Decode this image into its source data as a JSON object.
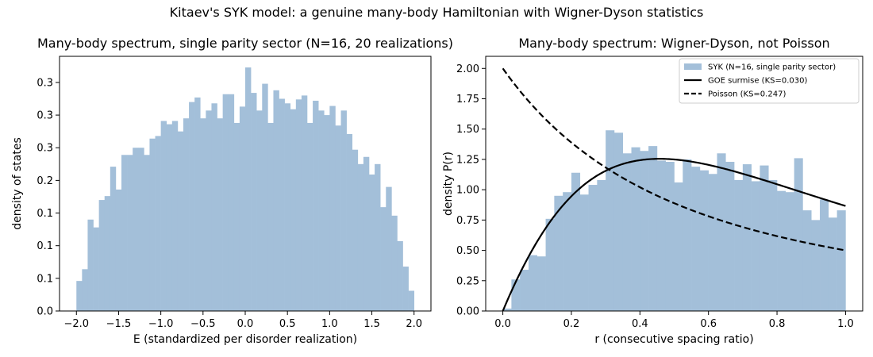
{
  "suptitle": "Kitaev's SYK model: a genuine many-body Hamiltonian with Wigner-Dyson statistics",
  "colors": {
    "bar": "#a3bfd9",
    "line": "#000000"
  },
  "chart_data": [
    {
      "type": "bar",
      "title": "Many-body spectrum, single parity sector (N=16, 20 realizations)",
      "xlabel": "E (standardized per disorder realization)",
      "ylabel": "density of states",
      "xlim": [
        -2.2,
        2.2
      ],
      "ylim": [
        0,
        0.39
      ],
      "xticks": [
        -2.0,
        -1.5,
        -1.0,
        -0.5,
        0.0,
        0.5,
        1.0,
        1.5,
        2.0
      ],
      "yticks": [
        0.0,
        0.05,
        0.1,
        0.15,
        0.2,
        0.25,
        0.3,
        0.35
      ],
      "bin_range": [
        -2.0,
        2.0
      ],
      "bins": 60,
      "values": [
        0.046,
        0.064,
        0.14,
        0.128,
        0.17,
        0.176,
        0.221,
        0.186,
        0.239,
        0.239,
        0.25,
        0.25,
        0.239,
        0.264,
        0.268,
        0.291,
        0.286,
        0.291,
        0.275,
        0.295,
        0.32,
        0.327,
        0.295,
        0.307,
        0.318,
        0.295,
        0.332,
        0.332,
        0.288,
        0.313,
        0.373,
        0.334,
        0.307,
        0.348,
        0.288,
        0.338,
        0.325,
        0.318,
        0.309,
        0.324,
        0.33,
        0.288,
        0.322,
        0.307,
        0.3,
        0.314,
        0.284,
        0.307,
        0.271,
        0.247,
        0.225,
        0.236,
        0.209,
        0.225,
        0.159,
        0.19,
        0.146,
        0.107,
        0.068,
        0.031
      ]
    },
    {
      "type": "bar",
      "title": "Many-body spectrum: Wigner-Dyson, not Poisson",
      "xlabel": "r (consecutive spacing ratio)",
      "ylabel": "density P(r)",
      "xlim": [
        -0.05,
        1.05
      ],
      "ylim": [
        0,
        2.1
      ],
      "xticks": [
        0.0,
        0.2,
        0.4,
        0.6,
        0.8,
        1.0
      ],
      "yticks": [
        0.0,
        0.25,
        0.5,
        0.75,
        1.0,
        1.25,
        1.5,
        1.75,
        2.0
      ],
      "bin_range": [
        0.0,
        1.0
      ],
      "bins": 40,
      "values": [
        0.02,
        0.26,
        0.34,
        0.46,
        0.45,
        0.76,
        0.95,
        0.98,
        1.14,
        0.96,
        1.04,
        1.08,
        1.49,
        1.47,
        1.3,
        1.35,
        1.32,
        1.36,
        1.24,
        1.23,
        1.06,
        1.25,
        1.19,
        1.16,
        1.13,
        1.3,
        1.23,
        1.08,
        1.21,
        1.07,
        1.2,
        1.08,
        0.99,
        0.98,
        1.26,
        0.83,
        0.75,
        0.92,
        0.77,
        0.83
      ],
      "legend": {
        "placement": "top-right",
        "entries": [
          {
            "label": "SYK (N=16, single parity sector)",
            "style": "patch"
          },
          {
            "label": "GOE surmise (KS=0.030)",
            "style": "solid"
          },
          {
            "label": "Poisson (KS=0.247)",
            "style": "dashed"
          }
        ]
      },
      "curves": [
        {
          "name": "GOE surmise",
          "style": "solid",
          "formula": "(27/4)(r+r^2)/(1+r+r^2)^(5/2)"
        },
        {
          "name": "Poisson",
          "style": "dashed",
          "formula": "2/(1+r)^2"
        }
      ]
    }
  ]
}
